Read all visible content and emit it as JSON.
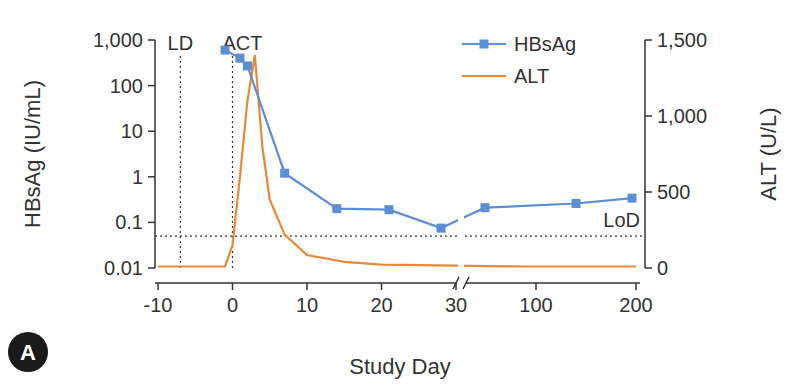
{
  "chart_data": {
    "type": "line",
    "x_label": "Study Day",
    "y_label": "HBsAg (IU/mL)",
    "y2_label": "ALT (U/L)",
    "panel_label": "A",
    "log": "y",
    "legend": "top right",
    "xlim": [
      -10,
      200
    ],
    "x_segments": [
      [
        -10,
        30
      ],
      [
        30,
        200
      ]
    ],
    "xticks": [
      -10,
      0,
      10,
      20,
      30,
      100,
      200
    ],
    "ylim": [
      0.01,
      1000
    ],
    "yticks": [
      {
        "value": 1000,
        "label": "1,000"
      },
      100,
      10,
      1,
      0.1,
      0.01
    ],
    "y2lim": [
      0,
      1500
    ],
    "y2ticks": [
      0,
      500,
      {
        "value": 1000,
        "label": "1,000"
      },
      {
        "value": 1500,
        "label": "1,500"
      }
    ],
    "annotations": [
      {
        "text": "LD",
        "x": -7
      },
      {
        "text": "ACT",
        "x": 0
      }
    ],
    "reference_lines": [
      {
        "text": "LoD",
        "y": 0.05
      }
    ],
    "series": [
      {
        "name": "HBsAg",
        "color": "#5b8fd4",
        "marker": "square",
        "line_style": "solid",
        "x": [
          -1,
          1,
          2,
          7,
          14,
          21,
          28,
          49,
          140,
          196
        ],
        "values": [
          600,
          400,
          270,
          1.2,
          0.2,
          0.19,
          0.075,
          0.21,
          0.26,
          0.34
        ]
      },
      {
        "name": "ALT",
        "color": "#e8893a",
        "axis": "y2",
        "line_style": "solid",
        "x": [
          -10,
          -1,
          0,
          1,
          2,
          3,
          4,
          5,
          7,
          10,
          15,
          20,
          30,
          50,
          100,
          200
        ],
        "values": [
          10,
          10,
          150,
          600,
          1100,
          1400,
          800,
          450,
          220,
          85,
          40,
          22,
          15,
          12,
          10,
          10
        ]
      }
    ]
  }
}
